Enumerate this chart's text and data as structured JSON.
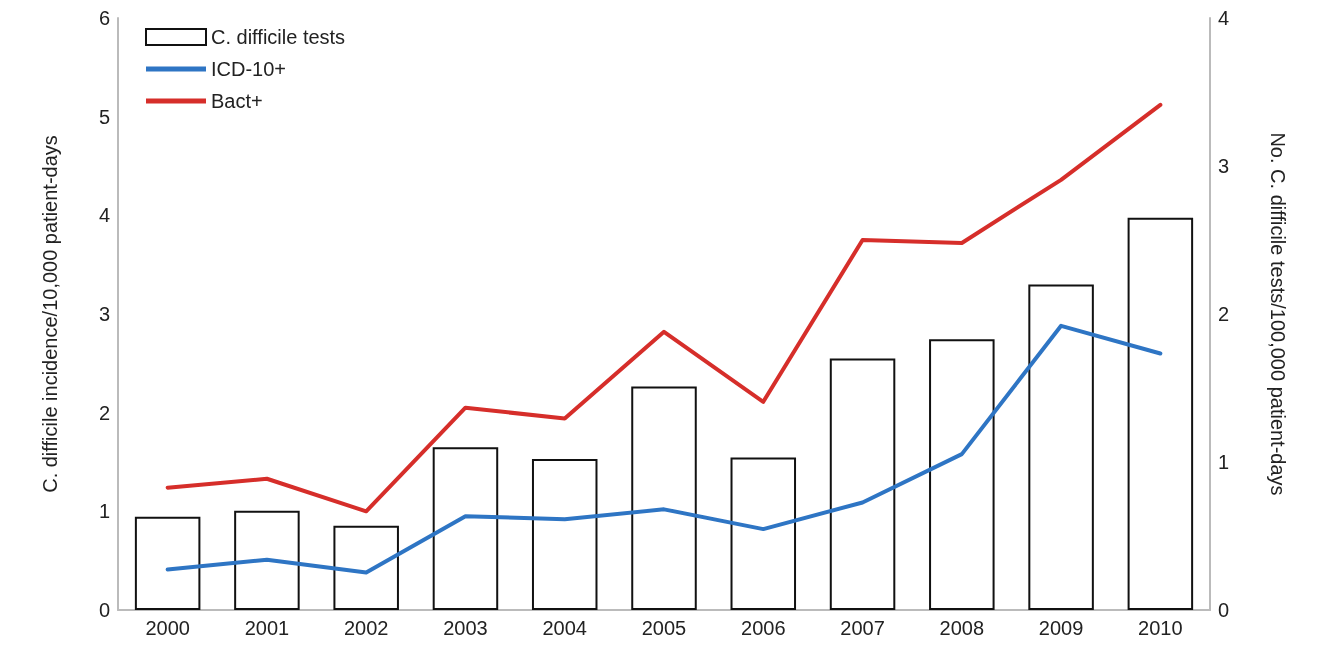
{
  "chart_data": {
    "type": "bar",
    "categories": [
      "2000",
      "2001",
      "2002",
      "2003",
      "2004",
      "2005",
      "2006",
      "2007",
      "2008",
      "2009",
      "2010"
    ],
    "series": [
      {
        "name": "C. difficile tests",
        "axis": "y2",
        "color": "#ffffff",
        "values": [
          0.63,
          0.67,
          0.57,
          1.1,
          1.02,
          1.51,
          1.03,
          1.7,
          1.83,
          2.2,
          2.65
        ]
      },
      {
        "name": "ICD-10+",
        "type": "line",
        "color": "#2e75c4",
        "values": [
          0.41,
          0.51,
          0.38,
          0.95,
          0.92,
          1.02,
          0.82,
          1.09,
          1.58,
          2.88,
          2.6
        ]
      },
      {
        "name": "Bact+",
        "type": "line",
        "color": "#d62e2a",
        "values": [
          1.24,
          1.33,
          1.0,
          2.05,
          1.94,
          2.82,
          2.11,
          3.75,
          3.72,
          4.36,
          5.12
        ]
      }
    ],
    "ylabel": "C. difficile incidence/10,000 patient-days",
    "y2label": "No. C. difficile tests/100,000 patient-days",
    "ylim": [
      0,
      6
    ],
    "yticks": [
      0,
      1,
      2,
      3,
      4,
      5,
      6
    ],
    "y2lim": [
      0,
      4
    ],
    "y2ticks": [
      0,
      1,
      2,
      3,
      4
    ],
    "grid": false,
    "legend": "top left",
    "marker": "none",
    "line_style": "solid"
  }
}
